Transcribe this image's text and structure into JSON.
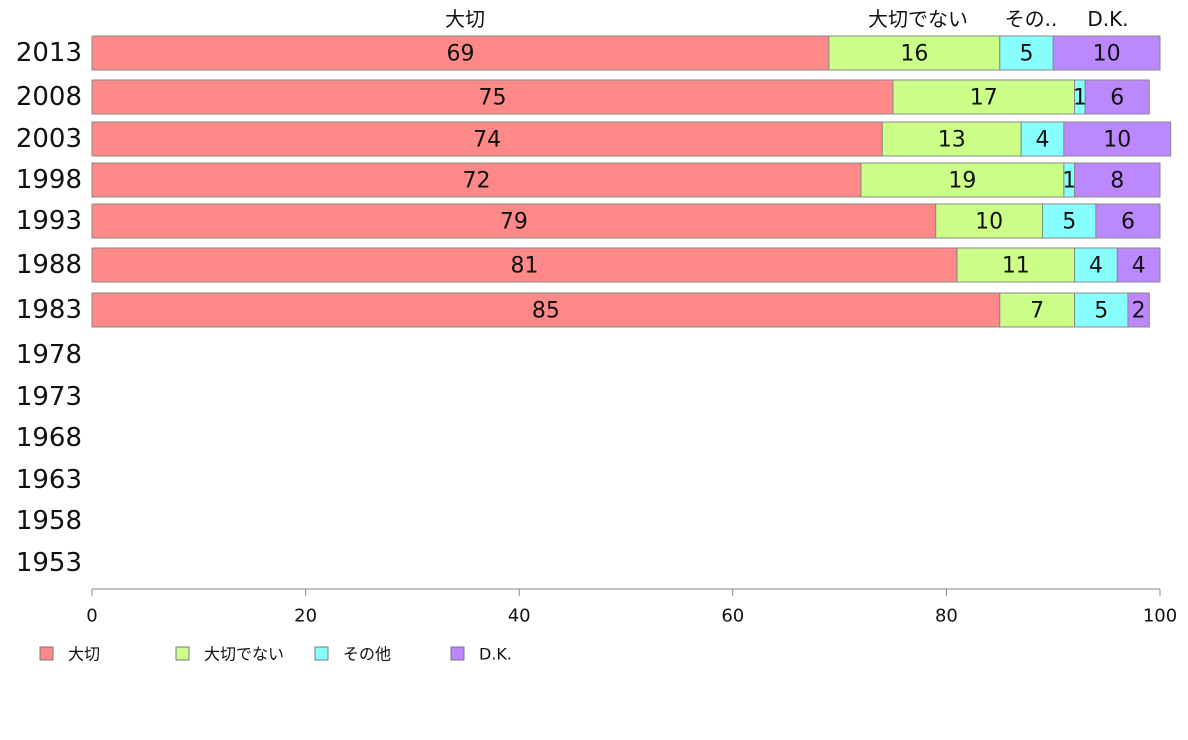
{
  "chart_data": {
    "type": "bar",
    "orientation": "horizontal",
    "stacked": true,
    "categories": [
      "2013",
      "2008",
      "2003",
      "1998",
      "1993",
      "1988",
      "1983",
      "1978",
      "1973",
      "1968",
      "1963",
      "1958",
      "1953"
    ],
    "series": [
      {
        "name": "大切",
        "color": "#ff8888",
        "values": [
          69,
          75,
          74,
          72,
          79,
          81,
          85,
          null,
          null,
          null,
          null,
          null,
          null
        ]
      },
      {
        "name": "大切でない",
        "color": "#ccff88",
        "values": [
          16,
          17,
          13,
          19,
          10,
          11,
          7,
          null,
          null,
          null,
          null,
          null,
          null
        ]
      },
      {
        "name": "その他",
        "color": "#88ffff",
        "values": [
          5,
          1,
          4,
          1,
          5,
          4,
          5,
          null,
          null,
          null,
          null,
          null,
          null
        ]
      },
      {
        "name": "D.K.",
        "color": "#bb88ff",
        "values": [
          10,
          6,
          10,
          8,
          6,
          4,
          2,
          null,
          null,
          null,
          null,
          null,
          null
        ]
      }
    ],
    "top_labels": [
      "大切",
      "大切でない",
      "その..",
      "D.K."
    ],
    "xlim": [
      0,
      100
    ],
    "xticks": [
      0,
      20,
      40,
      60,
      80,
      100
    ],
    "grid": false,
    "legend_position": "bottom-left"
  }
}
